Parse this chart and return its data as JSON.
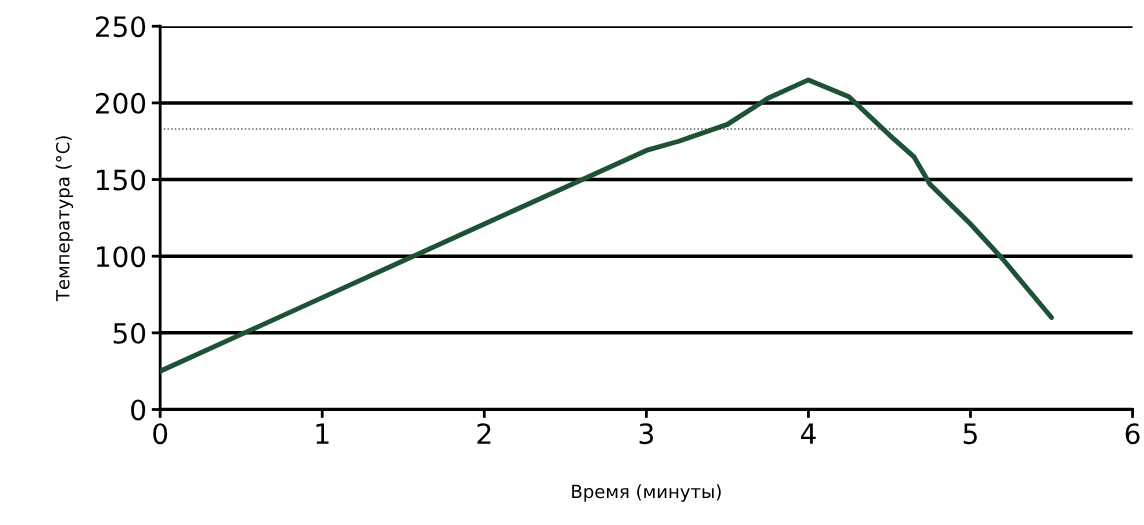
{
  "chart_data": {
    "type": "line",
    "xlabel": "Время (минуты)",
    "ylabel": "Температура (°C)",
    "x": [
      0,
      0.5,
      1,
      1.5,
      2,
      2.5,
      3,
      3.2,
      3.5,
      3.75,
      4.0,
      4.25,
      4.5,
      4.65,
      4.75,
      5.0,
      5.2,
      5.5
    ],
    "series": [
      {
        "color": "#1d5237",
        "values": [
          25,
          49,
          73,
          97,
          121,
          145,
          169,
          175,
          186,
          203,
          215,
          204,
          179,
          165,
          147,
          121,
          98,
          60
        ]
      }
    ],
    "xlim": [
      0,
      6
    ],
    "xticks": [
      0,
      1,
      2,
      3,
      4,
      5,
      6
    ],
    "ylim": [
      0,
      250
    ],
    "yticks": [
      0,
      50,
      100,
      150,
      200,
      250
    ],
    "grid": "y",
    "ref_lines": [
      {
        "axis": "y",
        "value": 183,
        "color": "#555555",
        "line_style": "dotted"
      }
    ]
  }
}
